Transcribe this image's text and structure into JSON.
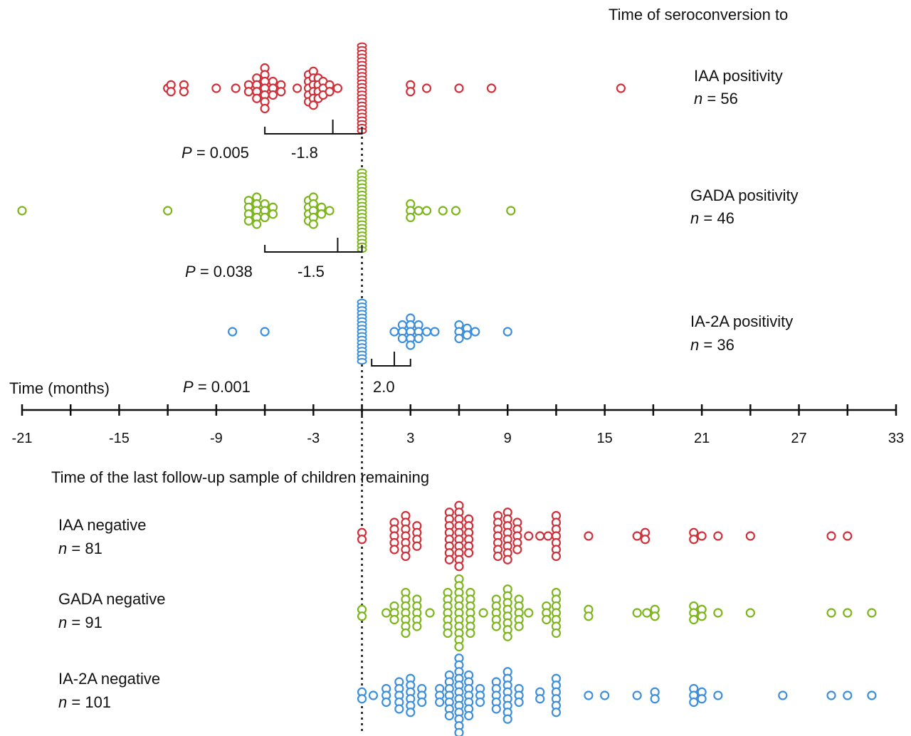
{
  "chart_data": {
    "type": "scatter",
    "subtype": "dot-plot (beeswarm)",
    "top_title": "Time of seroconversion to",
    "bottom_title": "Time of the last follow-up sample of children remaining",
    "xlabel": "Time (months)",
    "xlim": [
      -21,
      33
    ],
    "tick_labels": [
      "-21",
      "-15",
      "-9",
      "-3",
      "3",
      "9",
      "15",
      "21",
      "27",
      "33"
    ],
    "tick_values": [
      -21,
      -15,
      -9,
      -3,
      3,
      9,
      15,
      21,
      27,
      33
    ],
    "minor_tick_values": [
      -18,
      -12,
      -6,
      0,
      6,
      12,
      18,
      24,
      30
    ],
    "reference_line_x": 0,
    "colors": {
      "IAA": "#d0303a",
      "GADA": "#7db51c",
      "IA2A": "#3d8fdc",
      "axis": "#111111"
    },
    "series_top": [
      {
        "name": "IAA positivity",
        "n_label": "n",
        "n_value": "= 56",
        "color_key": "IAA",
        "pvalue_label": "P",
        "pvalue_value": "= 0.005",
        "median_label": "-1.8",
        "median": -1.8,
        "bracket": [
          -6,
          0
        ],
        "points": [
          [
            -12,
            1
          ],
          [
            -11.8,
            2
          ],
          [
            -11,
            2
          ],
          [
            -9,
            1
          ],
          [
            -7.8,
            1
          ],
          [
            -7,
            2
          ],
          [
            -6.5,
            4
          ],
          [
            -6,
            7
          ],
          [
            -5.5,
            3
          ],
          [
            -5,
            2
          ],
          [
            -4,
            1
          ],
          [
            -3.3,
            5
          ],
          [
            -3,
            6
          ],
          [
            -2.7,
            4
          ],
          [
            -2.4,
            3
          ],
          [
            -2,
            2
          ],
          [
            -1.5,
            1
          ],
          [
            3,
            2
          ],
          [
            4,
            1
          ],
          [
            6,
            1
          ],
          [
            8,
            1
          ],
          [
            16,
            1
          ]
        ],
        "stack_at_zero": 24
      },
      {
        "name": "GADA positivity",
        "n_label": "n",
        "n_value": "= 46",
        "color_key": "GADA",
        "pvalue_label": "P",
        "pvalue_value": "= 0.038",
        "median_label": "-1.5",
        "median": -1.5,
        "bracket": [
          -6,
          0
        ],
        "points": [
          [
            -21,
            1
          ],
          [
            -12,
            1
          ],
          [
            -7,
            4
          ],
          [
            -6.5,
            5
          ],
          [
            -6,
            3
          ],
          [
            -5.5,
            2
          ],
          [
            -3.3,
            4
          ],
          [
            -3,
            5
          ],
          [
            -2.5,
            2
          ],
          [
            -2,
            1
          ],
          [
            3,
            3
          ],
          [
            3.5,
            1
          ],
          [
            4,
            1
          ],
          [
            5,
            1
          ],
          [
            5.8,
            1
          ],
          [
            9.2,
            1
          ]
        ],
        "stack_at_zero": 22
      },
      {
        "name": "IA-2A positivity",
        "n_label": "n",
        "n_value": "= 36",
        "color_key": "IA2A",
        "pvalue_label": "P",
        "pvalue_value": "= 0.001",
        "median_label": "2.0",
        "median": 2.0,
        "bracket": [
          0.6,
          3
        ],
        "points": [
          [
            -8,
            1
          ],
          [
            -6,
            1
          ],
          [
            2,
            1
          ],
          [
            2.5,
            3
          ],
          [
            3,
            5
          ],
          [
            3.5,
            3
          ],
          [
            4,
            1
          ],
          [
            4.5,
            1
          ],
          [
            6,
            3
          ],
          [
            6.5,
            2
          ],
          [
            7,
            1
          ],
          [
            9,
            1
          ]
        ],
        "stack_at_zero": 17
      }
    ],
    "series_bottom": [
      {
        "name": "IAA negative",
        "n_label": "n",
        "n_value": "= 81",
        "color_key": "IAA",
        "points": [
          [
            0,
            2
          ],
          [
            2,
            5
          ],
          [
            2.7,
            7
          ],
          [
            3.4,
            4
          ],
          [
            5.4,
            8
          ],
          [
            6,
            10
          ],
          [
            6.6,
            6
          ],
          [
            8.4,
            7
          ],
          [
            9,
            8
          ],
          [
            9.6,
            5
          ],
          [
            10.3,
            1
          ],
          [
            11,
            1
          ],
          [
            11.5,
            1
          ],
          [
            12,
            7
          ],
          [
            14,
            1
          ],
          [
            17,
            1
          ],
          [
            17.5,
            2
          ],
          [
            20.5,
            2
          ],
          [
            21,
            1
          ],
          [
            22,
            1
          ],
          [
            24,
            1
          ],
          [
            29,
            1
          ],
          [
            30,
            1
          ]
        ]
      },
      {
        "name": "GADA negative",
        "n_label": "n",
        "n_value": "= 91",
        "color_key": "GADA",
        "points": [
          [
            0,
            2
          ],
          [
            1.5,
            1
          ],
          [
            2,
            3
          ],
          [
            2.7,
            7
          ],
          [
            3.4,
            5
          ],
          [
            4.2,
            1
          ],
          [
            5.3,
            7
          ],
          [
            6,
            11
          ],
          [
            6.7,
            7
          ],
          [
            7.5,
            1
          ],
          [
            8.3,
            5
          ],
          [
            9,
            8
          ],
          [
            9.7,
            5
          ],
          [
            10.3,
            1
          ],
          [
            11.4,
            3
          ],
          [
            12,
            7
          ],
          [
            14,
            2
          ],
          [
            17,
            1
          ],
          [
            17.6,
            1
          ],
          [
            18.1,
            2
          ],
          [
            20.5,
            3
          ],
          [
            21,
            2
          ],
          [
            22,
            1
          ],
          [
            24,
            1
          ],
          [
            29,
            1
          ],
          [
            30,
            1
          ],
          [
            31.5,
            1
          ]
        ]
      },
      {
        "name": "IA-2A negative",
        "n_label": "n",
        "n_value": "= 101",
        "color_key": "IA2A",
        "points": [
          [
            0,
            2
          ],
          [
            0.7,
            1
          ],
          [
            1.5,
            3
          ],
          [
            2.3,
            5
          ],
          [
            3,
            6
          ],
          [
            3.7,
            3
          ],
          [
            4.8,
            3
          ],
          [
            5.4,
            7
          ],
          [
            6,
            12
          ],
          [
            6.6,
            7
          ],
          [
            7.3,
            3
          ],
          [
            8.3,
            5
          ],
          [
            9,
            8
          ],
          [
            9.7,
            3
          ],
          [
            11,
            2
          ],
          [
            12,
            6
          ],
          [
            14,
            1
          ],
          [
            15,
            1
          ],
          [
            17,
            1
          ],
          [
            18.1,
            2
          ],
          [
            20.5,
            3
          ],
          [
            21,
            2
          ],
          [
            22,
            1
          ],
          [
            26,
            1
          ],
          [
            29,
            1
          ],
          [
            30,
            1
          ],
          [
            31.5,
            1
          ]
        ]
      }
    ]
  }
}
